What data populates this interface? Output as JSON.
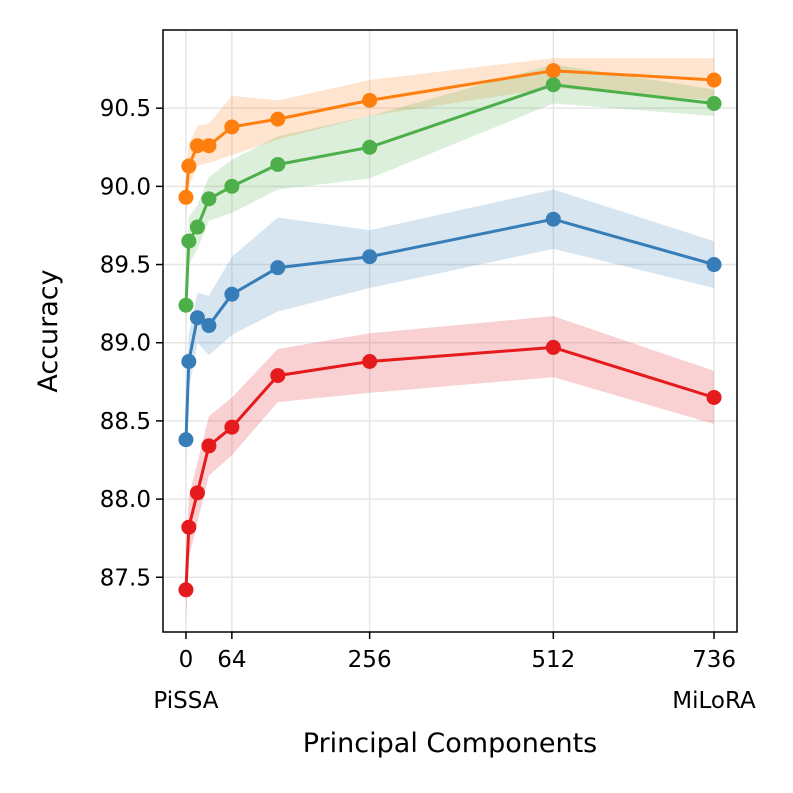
{
  "chart_data": {
    "type": "line",
    "title": "",
    "xlabel": "Principal Components",
    "ylabel": "Accuracy",
    "xlim": [
      -32,
      768
    ],
    "ylim": [
      87.15,
      91.0
    ],
    "grid": true,
    "x_ticks": [
      0,
      64,
      256,
      512,
      736
    ],
    "x_tick_labels": [
      "0",
      "64",
      "256",
      "512",
      "736"
    ],
    "x_annotations": [
      {
        "x": 0,
        "text": "PiSSA"
      },
      {
        "x": 736,
        "text": "MiLoRA"
      }
    ],
    "y_ticks": [
      87.5,
      88.0,
      88.5,
      89.0,
      89.5,
      90.0,
      90.5
    ],
    "y_tick_labels": [
      "87.5",
      "88.0",
      "88.5",
      "89.0",
      "89.5",
      "90.0",
      "90.5"
    ],
    "x": [
      0,
      4,
      16,
      32,
      64,
      128,
      256,
      512,
      736
    ],
    "series": [
      {
        "name": "orange",
        "color": "#ff7f0e",
        "values": [
          89.93,
          90.13,
          90.26,
          90.26,
          90.38,
          90.43,
          90.55,
          90.74,
          90.68
        ],
        "lower": [
          89.8,
          90.0,
          90.13,
          90.15,
          90.2,
          90.3,
          90.45,
          90.63,
          90.55
        ],
        "upper": [
          90.07,
          90.27,
          90.39,
          90.4,
          90.58,
          90.55,
          90.68,
          90.82,
          90.82
        ]
      },
      {
        "name": "green",
        "color": "#4daf4a",
        "values": [
          89.24,
          89.65,
          89.74,
          89.92,
          90.0,
          90.14,
          90.25,
          90.65,
          90.53
        ],
        "lower": [
          89.1,
          89.5,
          89.6,
          89.78,
          89.83,
          89.98,
          90.05,
          90.53,
          90.45
        ],
        "upper": [
          89.38,
          89.8,
          89.88,
          90.06,
          90.17,
          90.32,
          90.45,
          90.78,
          90.62
        ]
      },
      {
        "name": "blue",
        "color": "#377eb8",
        "values": [
          88.38,
          88.88,
          89.16,
          89.11,
          89.31,
          89.48,
          89.55,
          89.79,
          89.5
        ],
        "lower": [
          88.2,
          88.7,
          89.0,
          88.92,
          89.05,
          89.2,
          89.35,
          89.6,
          89.35
        ],
        "upper": [
          88.55,
          89.05,
          89.32,
          89.3,
          89.55,
          89.8,
          89.72,
          89.98,
          89.65
        ]
      },
      {
        "name": "red",
        "color": "#e41a1c",
        "values": [
          87.42,
          87.82,
          88.04,
          88.34,
          88.46,
          88.79,
          88.88,
          88.97,
          88.65
        ],
        "lower": [
          87.22,
          87.62,
          87.85,
          88.15,
          88.28,
          88.62,
          88.68,
          88.78,
          88.48
        ],
        "upper": [
          87.62,
          88.02,
          88.23,
          88.53,
          88.65,
          88.96,
          89.06,
          89.17,
          88.82
        ]
      }
    ]
  }
}
